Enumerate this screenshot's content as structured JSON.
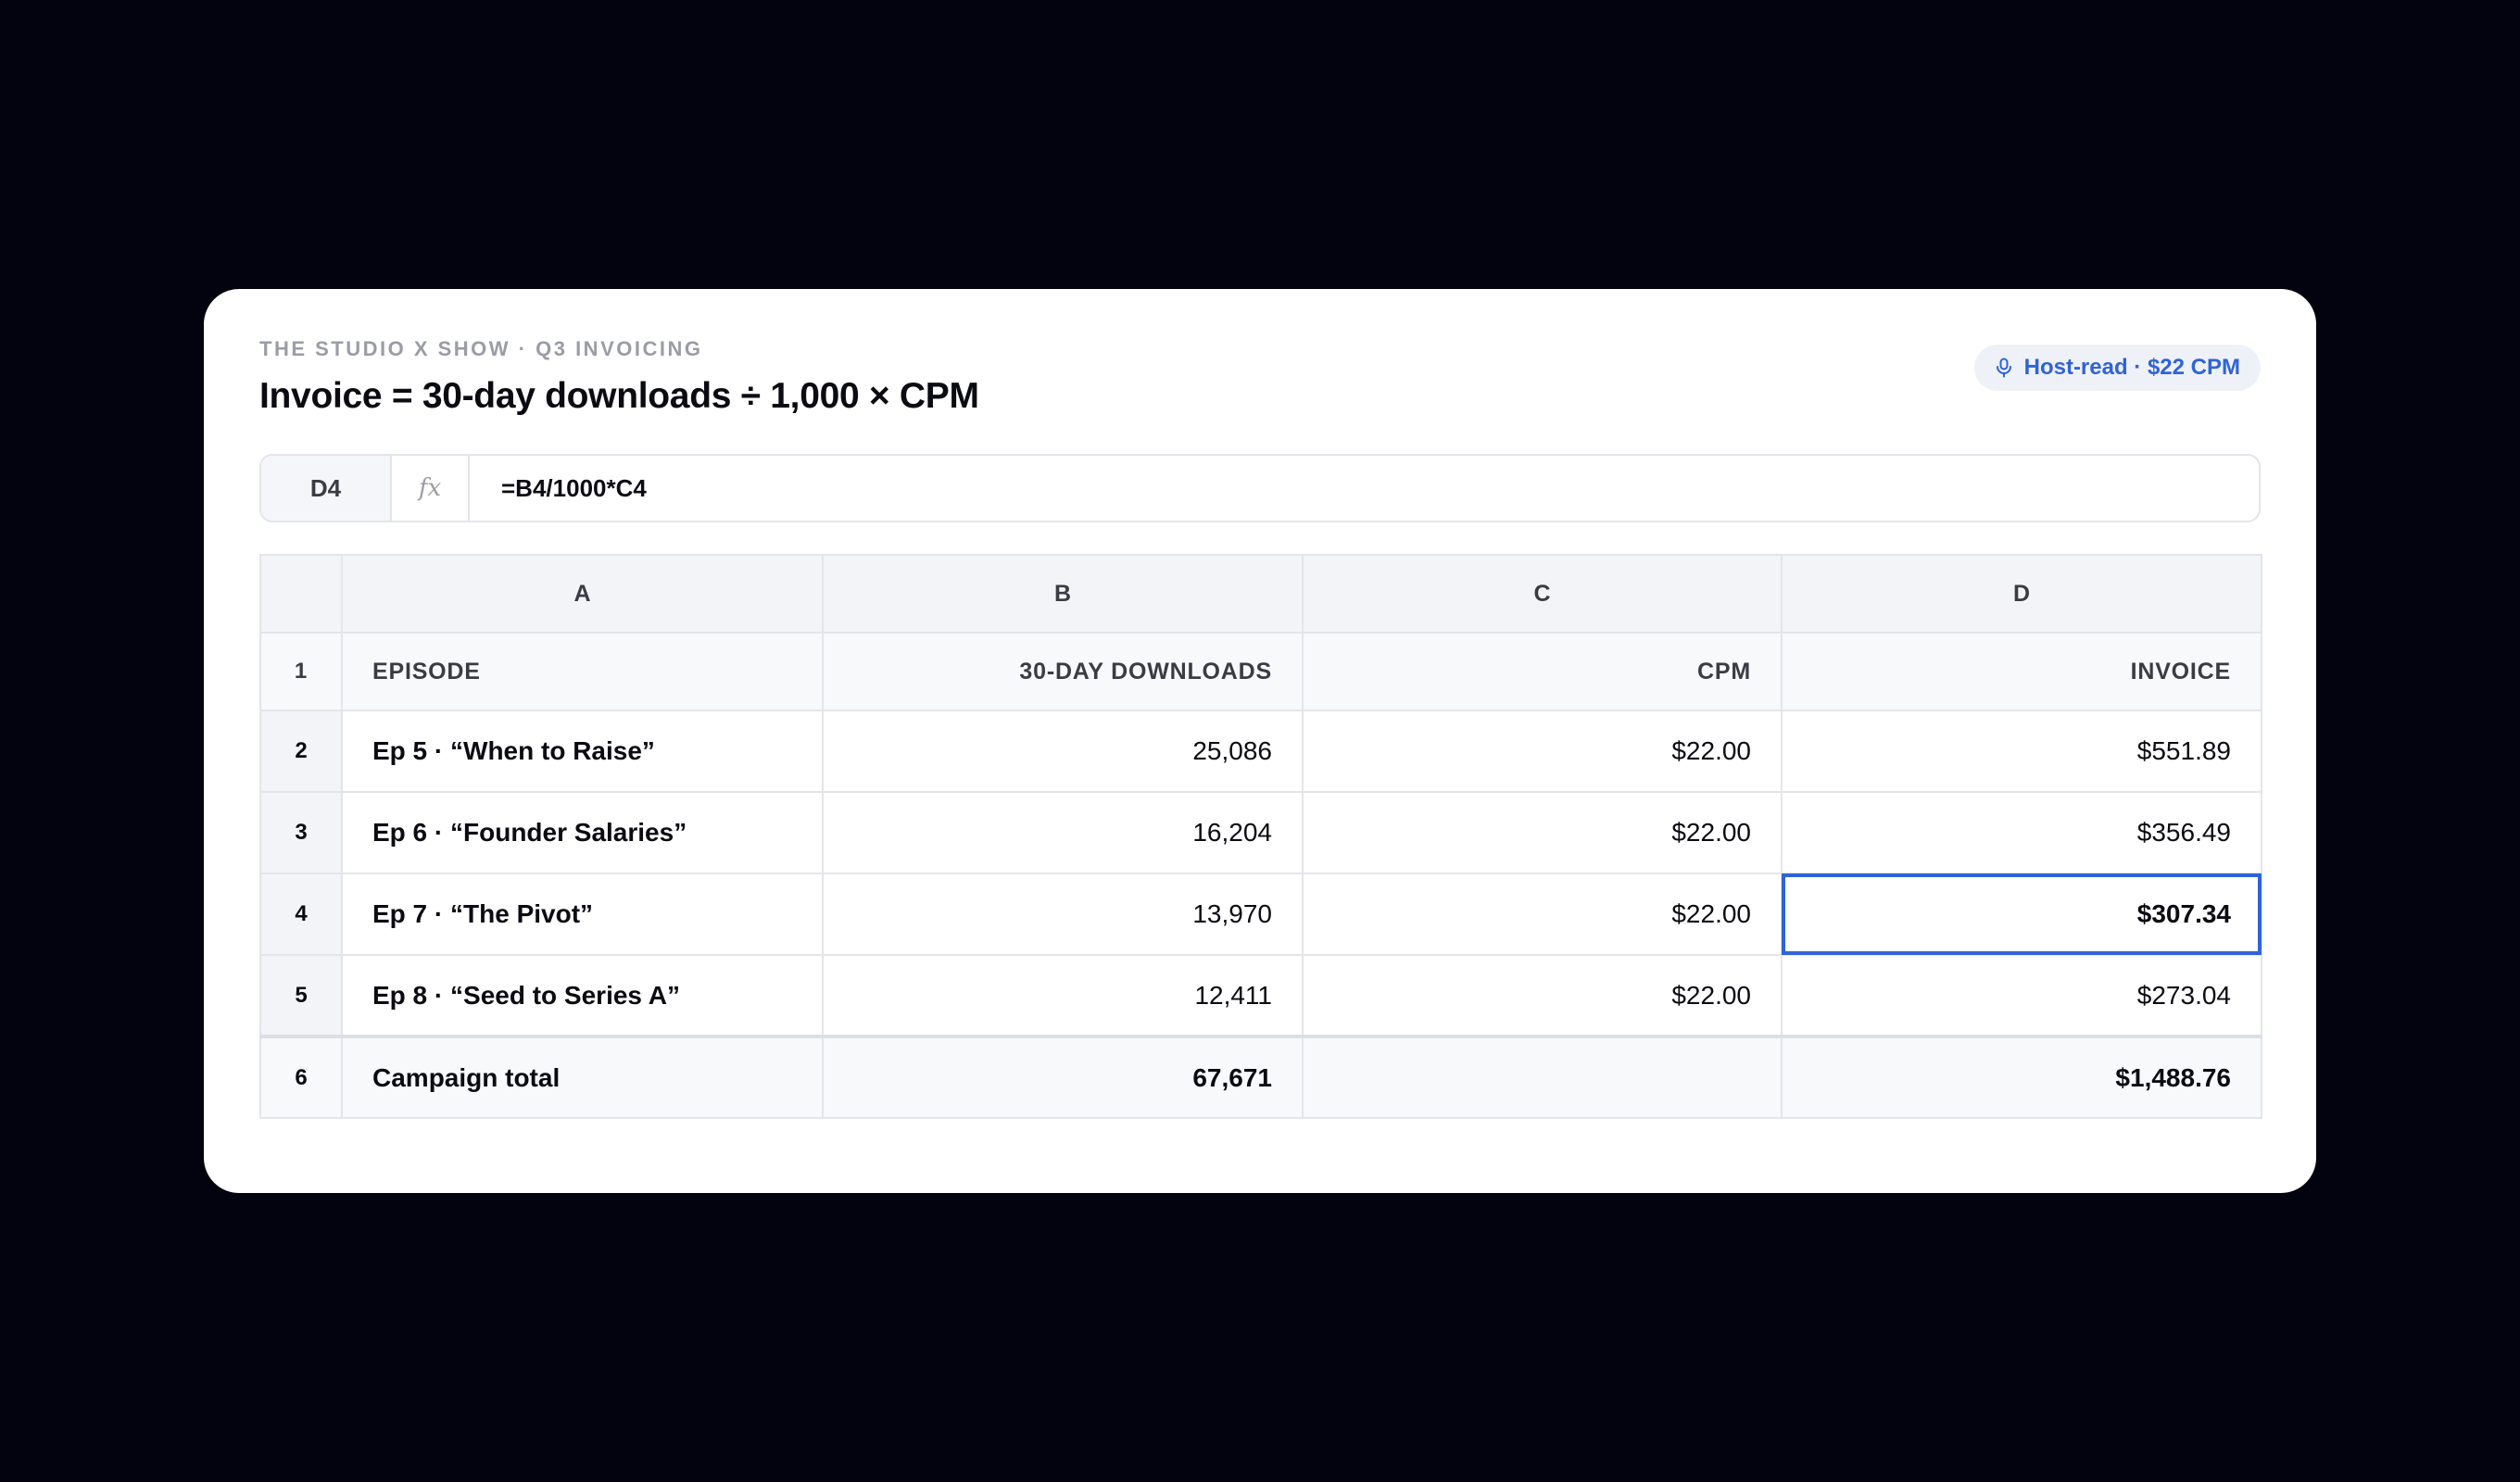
{
  "header": {
    "eyebrow": "THE STUDIO X SHOW · Q3 INVOICING",
    "title": "Invoice = 30-day downloads ÷ 1,000 × CPM",
    "badge": {
      "icon": "microphone-icon",
      "label": "Host-read · $22 CPM",
      "color": "#2f63d8"
    }
  },
  "formula_bar": {
    "cell_ref": "D4",
    "fx_label": "fx",
    "formula": "=B4/1000*C4"
  },
  "sheet": {
    "column_letters": [
      "A",
      "B",
      "C",
      "D"
    ],
    "header_row": {
      "num": "1",
      "cells": [
        "EPISODE",
        "30-DAY DOWNLOADS",
        "CPM",
        "INVOICE"
      ]
    },
    "rows": [
      {
        "num": "2",
        "episode": "Ep 5 · “When to Raise”",
        "downloads": "25,086",
        "cpm": "$22.00",
        "invoice": "$551.89"
      },
      {
        "num": "3",
        "episode": "Ep 6 · “Founder Salaries”",
        "downloads": "16,204",
        "cpm": "$22.00",
        "invoice": "$356.49"
      },
      {
        "num": "4",
        "episode": "Ep 7 · “The Pivot”",
        "downloads": "13,970",
        "cpm": "$22.00",
        "invoice": "$307.34"
      },
      {
        "num": "5",
        "episode": "Ep 8 · “Seed to Series A”",
        "downloads": "12,411",
        "cpm": "$22.00",
        "invoice": "$273.04"
      }
    ],
    "total_row": {
      "num": "6",
      "label": "Campaign total",
      "downloads": "67,671",
      "cpm": "",
      "invoice": "$1,488.76"
    },
    "selected_cell": "D4",
    "selection_color": "#2f63d8"
  }
}
